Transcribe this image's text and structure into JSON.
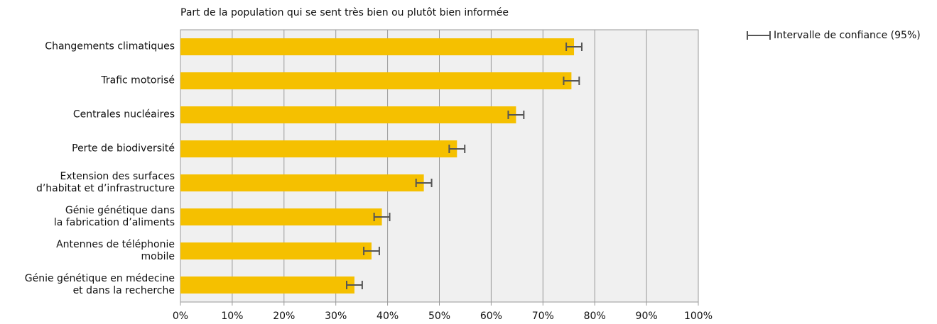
{
  "chart_data": {
    "type": "bar",
    "orientation": "horizontal",
    "title": "Part de la population qui se sent très bien ou plutôt bien informée",
    "categories": [
      "Changements climatiques",
      "Trafic motorisé",
      "Centrales nucléaires",
      "Perte de biodiversité",
      "Extension des surfaces\nd’habitat et d’infrastructure",
      "Génie génétique dans\nla fabrication d’aliments",
      "Antennes de téléphonie\nmobile",
      "Génie génétique en médecine\net dans la recherche"
    ],
    "values": [
      76,
      75.5,
      64.8,
      53.4,
      47,
      38.9,
      36.9,
      33.6
    ],
    "errors": [
      1.5,
      1.5,
      1.5,
      1.5,
      1.5,
      1.5,
      1.5,
      1.5
    ],
    "error_label": "Intervalle de confiance (95%)",
    "color": "#f5c000",
    "xlim": [
      0,
      100
    ],
    "xticks": [
      {
        "value": 0,
        "label": "0%"
      },
      {
        "value": 10,
        "label": "10%"
      },
      {
        "value": 20,
        "label": "20%"
      },
      {
        "value": 30,
        "label": "30%"
      },
      {
        "value": 40,
        "label": "40%"
      },
      {
        "value": 50,
        "label": "50%"
      },
      {
        "value": 60,
        "label": "60%"
      },
      {
        "value": 70,
        "label": "70%"
      },
      {
        "value": 80,
        "label": "80%"
      },
      {
        "value": 90,
        "label": "90%"
      },
      {
        "value": 100,
        "label": "100%"
      }
    ],
    "grid": true
  }
}
